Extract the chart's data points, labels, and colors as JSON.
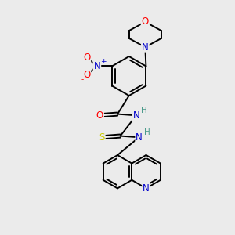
{
  "bg_color": "#ebebeb",
  "atom_colors": {
    "C": "#000000",
    "N": "#0000cc",
    "O": "#ff0000",
    "S": "#cccc00",
    "H": "#4a9a8a"
  },
  "figsize": [
    3.0,
    3.0
  ],
  "dpi": 100
}
